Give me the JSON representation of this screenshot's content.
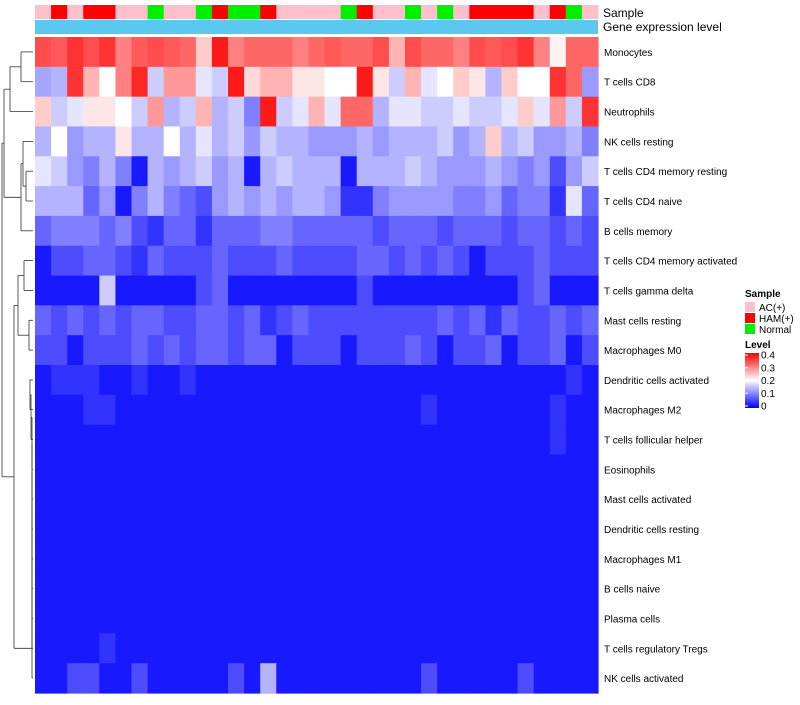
{
  "chart_data": {
    "type": "heatmap",
    "title": "",
    "annotation_rows": [
      "Sample",
      "Gene expression level"
    ],
    "n_samples": 35,
    "sample_groups": [
      "AC(+)",
      "HAM(+)",
      "AC(+)",
      "HAM(+)",
      "HAM(+)",
      "AC(+)",
      "AC(+)",
      "Normal",
      "AC(+)",
      "AC(+)",
      "Normal",
      "HAM(+)",
      "Normal",
      "Normal",
      "HAM(+)",
      "AC(+)",
      "AC(+)",
      "AC(+)",
      "AC(+)",
      "Normal",
      "HAM(+)",
      "AC(+)",
      "AC(+)",
      "Normal",
      "AC(+)",
      "Normal",
      "AC(+)",
      "HAM(+)",
      "HAM(+)",
      "HAM(+)",
      "HAM(+)",
      "AC(+)",
      "HAM(+)",
      "Normal",
      "AC(+)"
    ],
    "legend": {
      "sample_title": "Sample",
      "sample_items": [
        {
          "label": "AC(+)",
          "color": "#ffc0cb"
        },
        {
          "label": "HAM(+)",
          "color": "#ff0000"
        },
        {
          "label": "Normal",
          "color": "#00ee00"
        }
      ],
      "level_title": "Level",
      "level_ticks": [
        "0.4",
        "0.3",
        "0.2",
        "0.1",
        "0"
      ],
      "level_range": [
        0,
        0.4
      ]
    },
    "colors": {
      "low": "#0000ff",
      "mid": "#ffffff",
      "high": "#ff0000",
      "expression_bar": "#5bc8f0",
      "dendrogram": "#333333"
    },
    "rows": [
      {
        "label": "Monocytes",
        "values": [
          0.34,
          0.33,
          0.36,
          0.34,
          0.36,
          0.3,
          0.33,
          0.34,
          0.33,
          0.32,
          0.24,
          0.38,
          0.3,
          0.32,
          0.32,
          0.32,
          0.3,
          0.32,
          0.33,
          0.32,
          0.32,
          0.34,
          0.26,
          0.34,
          0.32,
          0.32,
          0.3,
          0.34,
          0.33,
          0.34,
          0.36,
          0.3,
          0.21,
          0.32,
          0.32
        ]
      },
      {
        "label": "T cells CD8",
        "values": [
          0.13,
          0.14,
          0.36,
          0.26,
          0.2,
          0.3,
          0.37,
          0.16,
          0.28,
          0.28,
          0.18,
          0.16,
          0.38,
          0.23,
          0.26,
          0.26,
          0.22,
          0.22,
          0.2,
          0.2,
          0.38,
          0.22,
          0.16,
          0.26,
          0.18,
          0.2,
          0.24,
          0.22,
          0.14,
          0.24,
          0.2,
          0.2,
          0.36,
          0.32,
          0.12
        ]
      },
      {
        "label": "Neutrophils",
        "values": [
          0.24,
          0.16,
          0.18,
          0.22,
          0.22,
          0.2,
          0.16,
          0.28,
          0.14,
          0.16,
          0.26,
          0.14,
          0.16,
          0.1,
          0.38,
          0.16,
          0.18,
          0.26,
          0.18,
          0.32,
          0.32,
          0.14,
          0.18,
          0.18,
          0.16,
          0.16,
          0.18,
          0.16,
          0.16,
          0.18,
          0.24,
          0.18,
          0.28,
          0.16,
          0.36
        ]
      },
      {
        "label": "NK cells resting",
        "values": [
          0.14,
          0.2,
          0.12,
          0.14,
          0.14,
          0.22,
          0.14,
          0.14,
          0.2,
          0.14,
          0.18,
          0.14,
          0.16,
          0.12,
          0.16,
          0.14,
          0.14,
          0.12,
          0.12,
          0.12,
          0.14,
          0.12,
          0.14,
          0.14,
          0.14,
          0.16,
          0.12,
          0.14,
          0.24,
          0.14,
          0.16,
          0.12,
          0.12,
          0.14,
          0.1
        ]
      },
      {
        "label": "T cells CD4 memory resting",
        "values": [
          0.18,
          0.16,
          0.12,
          0.1,
          0.14,
          0.1,
          0.02,
          0.14,
          0.12,
          0.14,
          0.16,
          0.12,
          0.14,
          0.02,
          0.14,
          0.16,
          0.14,
          0.14,
          0.14,
          0.02,
          0.14,
          0.14,
          0.14,
          0.16,
          0.14,
          0.12,
          0.12,
          0.12,
          0.14,
          0.12,
          0.1,
          0.12,
          0.06,
          0.12,
          0.16
        ]
      },
      {
        "label": "T cells CD4 naive",
        "values": [
          0.14,
          0.14,
          0.14,
          0.08,
          0.12,
          0.02,
          0.1,
          0.14,
          0.1,
          0.08,
          0.06,
          0.12,
          0.14,
          0.12,
          0.14,
          0.12,
          0.14,
          0.14,
          0.12,
          0.04,
          0.04,
          0.1,
          0.12,
          0.12,
          0.12,
          0.12,
          0.1,
          0.1,
          0.12,
          0.08,
          0.1,
          0.1,
          0.04,
          0.18,
          0.08
        ]
      },
      {
        "label": "B cells memory",
        "values": [
          0.08,
          0.1,
          0.1,
          0.1,
          0.08,
          0.1,
          0.06,
          0.04,
          0.08,
          0.08,
          0.04,
          0.08,
          0.08,
          0.08,
          0.1,
          0.1,
          0.08,
          0.08,
          0.08,
          0.08,
          0.08,
          0.06,
          0.08,
          0.08,
          0.08,
          0.06,
          0.08,
          0.08,
          0.08,
          0.06,
          0.08,
          0.08,
          0.06,
          0.08,
          0.06
        ]
      },
      {
        "label": "T cells CD4 memory activated",
        "values": [
          0.02,
          0.06,
          0.06,
          0.08,
          0.08,
          0.06,
          0.04,
          0.08,
          0.06,
          0.06,
          0.06,
          0.08,
          0.06,
          0.06,
          0.06,
          0.08,
          0.06,
          0.06,
          0.06,
          0.06,
          0.08,
          0.08,
          0.06,
          0.08,
          0.06,
          0.08,
          0.06,
          0.02,
          0.06,
          0.06,
          0.06,
          0.08,
          0.06,
          0.06,
          0.06
        ]
      },
      {
        "label": "T cells gamma delta",
        "values": [
          0.02,
          0.02,
          0.02,
          0.02,
          0.16,
          0.02,
          0.02,
          0.02,
          0.02,
          0.02,
          0.06,
          0.08,
          0.02,
          0.02,
          0.02,
          0.02,
          0.02,
          0.02,
          0.02,
          0.02,
          0.06,
          0.02,
          0.02,
          0.02,
          0.02,
          0.02,
          0.02,
          0.02,
          0.02,
          0.02,
          0.06,
          0.08,
          0.02,
          0.02,
          0.02
        ]
      },
      {
        "label": "Mast cells resting",
        "values": [
          0.08,
          0.06,
          0.08,
          0.06,
          0.08,
          0.06,
          0.08,
          0.08,
          0.06,
          0.06,
          0.08,
          0.08,
          0.06,
          0.08,
          0.04,
          0.06,
          0.08,
          0.06,
          0.06,
          0.06,
          0.06,
          0.06,
          0.06,
          0.06,
          0.06,
          0.08,
          0.06,
          0.08,
          0.04,
          0.08,
          0.06,
          0.06,
          0.08,
          0.06,
          0.08
        ]
      },
      {
        "label": "Macrophages M0",
        "values": [
          0.06,
          0.06,
          0.02,
          0.06,
          0.06,
          0.06,
          0.08,
          0.06,
          0.08,
          0.06,
          0.08,
          0.08,
          0.06,
          0.08,
          0.08,
          0.02,
          0.06,
          0.06,
          0.06,
          0.02,
          0.06,
          0.06,
          0.06,
          0.08,
          0.06,
          0.02,
          0.06,
          0.06,
          0.08,
          0.02,
          0.06,
          0.06,
          0.08,
          0.02,
          0.06
        ]
      },
      {
        "label": "Dendritic cells activated",
        "values": [
          0.02,
          0.04,
          0.04,
          0.04,
          0.02,
          0.02,
          0.04,
          0.02,
          0.02,
          0.04,
          0.02,
          0.02,
          0.02,
          0.02,
          0.02,
          0.02,
          0.02,
          0.02,
          0.02,
          0.02,
          0.02,
          0.02,
          0.02,
          0.02,
          0.02,
          0.02,
          0.02,
          0.02,
          0.02,
          0.02,
          0.02,
          0.02,
          0.02,
          0.04,
          0.02
        ]
      },
      {
        "label": "Macrophages M2",
        "values": [
          0.02,
          0.02,
          0.02,
          0.04,
          0.04,
          0.02,
          0.02,
          0.02,
          0.02,
          0.02,
          0.02,
          0.02,
          0.02,
          0.02,
          0.02,
          0.02,
          0.02,
          0.02,
          0.02,
          0.02,
          0.02,
          0.02,
          0.02,
          0.02,
          0.04,
          0.02,
          0.02,
          0.02,
          0.02,
          0.02,
          0.02,
          0.02,
          0.04,
          0.02,
          0.02
        ]
      },
      {
        "label": "T cells follicular helper",
        "values": [
          0.02,
          0.02,
          0.02,
          0.02,
          0.02,
          0.02,
          0.02,
          0.02,
          0.02,
          0.02,
          0.02,
          0.02,
          0.02,
          0.02,
          0.02,
          0.02,
          0.02,
          0.02,
          0.02,
          0.02,
          0.02,
          0.02,
          0.02,
          0.02,
          0.02,
          0.02,
          0.02,
          0.02,
          0.02,
          0.02,
          0.02,
          0.02,
          0.04,
          0.02,
          0.02
        ]
      },
      {
        "label": "Eosinophils",
        "values": [
          0.02,
          0.02,
          0.02,
          0.02,
          0.02,
          0.02,
          0.02,
          0.02,
          0.02,
          0.02,
          0.02,
          0.02,
          0.02,
          0.02,
          0.02,
          0.02,
          0.02,
          0.02,
          0.02,
          0.02,
          0.02,
          0.02,
          0.02,
          0.02,
          0.02,
          0.02,
          0.02,
          0.02,
          0.02,
          0.02,
          0.02,
          0.02,
          0.02,
          0.02,
          0.02
        ]
      },
      {
        "label": "Mast cells activated",
        "values": [
          0.02,
          0.02,
          0.02,
          0.02,
          0.02,
          0.02,
          0.02,
          0.02,
          0.02,
          0.02,
          0.02,
          0.02,
          0.02,
          0.02,
          0.02,
          0.02,
          0.02,
          0.02,
          0.02,
          0.02,
          0.02,
          0.02,
          0.02,
          0.02,
          0.02,
          0.02,
          0.02,
          0.02,
          0.02,
          0.02,
          0.02,
          0.02,
          0.02,
          0.02,
          0.02
        ]
      },
      {
        "label": "Dendritic cells resting",
        "values": [
          0.02,
          0.02,
          0.02,
          0.02,
          0.02,
          0.02,
          0.02,
          0.02,
          0.02,
          0.02,
          0.02,
          0.02,
          0.02,
          0.02,
          0.02,
          0.02,
          0.02,
          0.02,
          0.02,
          0.02,
          0.02,
          0.02,
          0.02,
          0.02,
          0.02,
          0.02,
          0.02,
          0.02,
          0.02,
          0.02,
          0.02,
          0.02,
          0.02,
          0.02,
          0.02
        ]
      },
      {
        "label": "Macrophages M1",
        "values": [
          0.02,
          0.02,
          0.02,
          0.02,
          0.02,
          0.02,
          0.02,
          0.02,
          0.02,
          0.02,
          0.02,
          0.02,
          0.02,
          0.02,
          0.02,
          0.02,
          0.02,
          0.02,
          0.02,
          0.02,
          0.02,
          0.02,
          0.02,
          0.02,
          0.02,
          0.02,
          0.02,
          0.02,
          0.02,
          0.02,
          0.02,
          0.02,
          0.02,
          0.02,
          0.02
        ]
      },
      {
        "label": "B cells naive",
        "values": [
          0.02,
          0.02,
          0.02,
          0.02,
          0.02,
          0.02,
          0.02,
          0.02,
          0.02,
          0.02,
          0.02,
          0.02,
          0.02,
          0.02,
          0.02,
          0.02,
          0.02,
          0.02,
          0.02,
          0.02,
          0.02,
          0.02,
          0.02,
          0.02,
          0.02,
          0.02,
          0.02,
          0.02,
          0.02,
          0.02,
          0.02,
          0.02,
          0.02,
          0.02,
          0.02
        ]
      },
      {
        "label": "Plasma cells",
        "values": [
          0.02,
          0.02,
          0.02,
          0.02,
          0.02,
          0.02,
          0.02,
          0.02,
          0.02,
          0.02,
          0.02,
          0.02,
          0.02,
          0.02,
          0.02,
          0.02,
          0.02,
          0.02,
          0.02,
          0.02,
          0.02,
          0.02,
          0.02,
          0.02,
          0.02,
          0.02,
          0.02,
          0.02,
          0.02,
          0.02,
          0.02,
          0.02,
          0.02,
          0.02,
          0.02
        ]
      },
      {
        "label": "T cells regulatory  Tregs",
        "values": [
          0.02,
          0.02,
          0.02,
          0.02,
          0.04,
          0.02,
          0.02,
          0.02,
          0.02,
          0.02,
          0.02,
          0.02,
          0.02,
          0.02,
          0.02,
          0.02,
          0.02,
          0.02,
          0.02,
          0.02,
          0.02,
          0.02,
          0.02,
          0.02,
          0.02,
          0.02,
          0.02,
          0.02,
          0.02,
          0.02,
          0.02,
          0.02,
          0.02,
          0.02,
          0.02
        ]
      },
      {
        "label": "NK cells activated",
        "values": [
          0.02,
          0.02,
          0.06,
          0.06,
          0.02,
          0.02,
          0.06,
          0.02,
          0.02,
          0.02,
          0.02,
          0.02,
          0.06,
          0.02,
          0.14,
          0.02,
          0.02,
          0.02,
          0.02,
          0.02,
          0.02,
          0.02,
          0.02,
          0.02,
          0.06,
          0.02,
          0.02,
          0.02,
          0.02,
          0.02,
          0.06,
          0.02,
          0.02,
          0.02,
          0.02
        ]
      }
    ]
  }
}
